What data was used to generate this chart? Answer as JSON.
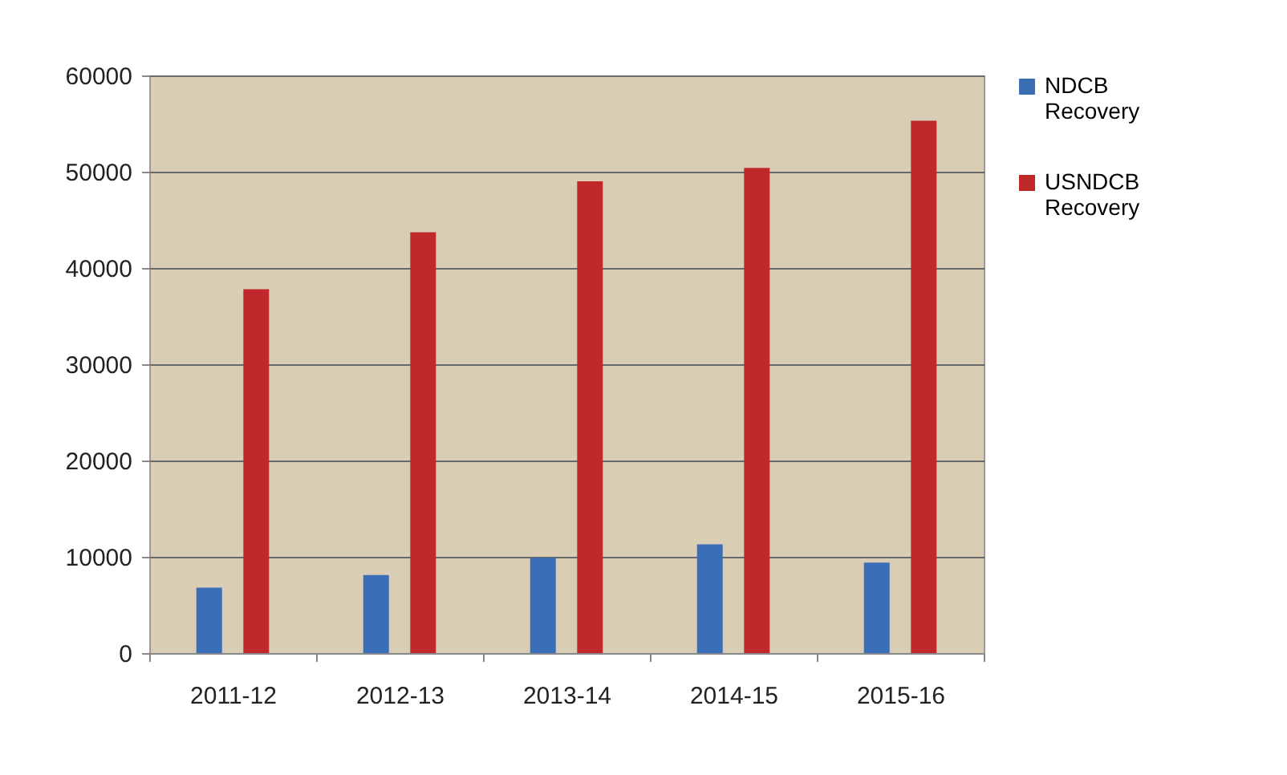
{
  "chart_data": {
    "type": "bar",
    "categories": [
      "2011-12",
      "2012-13",
      "2013-14",
      "2014-15",
      "2015-16"
    ],
    "series": [
      {
        "name": "NDCB Recovery",
        "color": "#3a6fb8",
        "values": [
          6800,
          8100,
          9900,
          11300,
          9400
        ]
      },
      {
        "name": "USNDCB Recovery",
        "color": "#c0282b",
        "values": [
          37800,
          43700,
          49000,
          50400,
          55300
        ]
      }
    ],
    "ylim": [
      0,
      60000
    ],
    "yticks": [
      0,
      10000,
      20000,
      30000,
      40000,
      50000,
      60000
    ],
    "grid": "y",
    "legend": "right"
  }
}
